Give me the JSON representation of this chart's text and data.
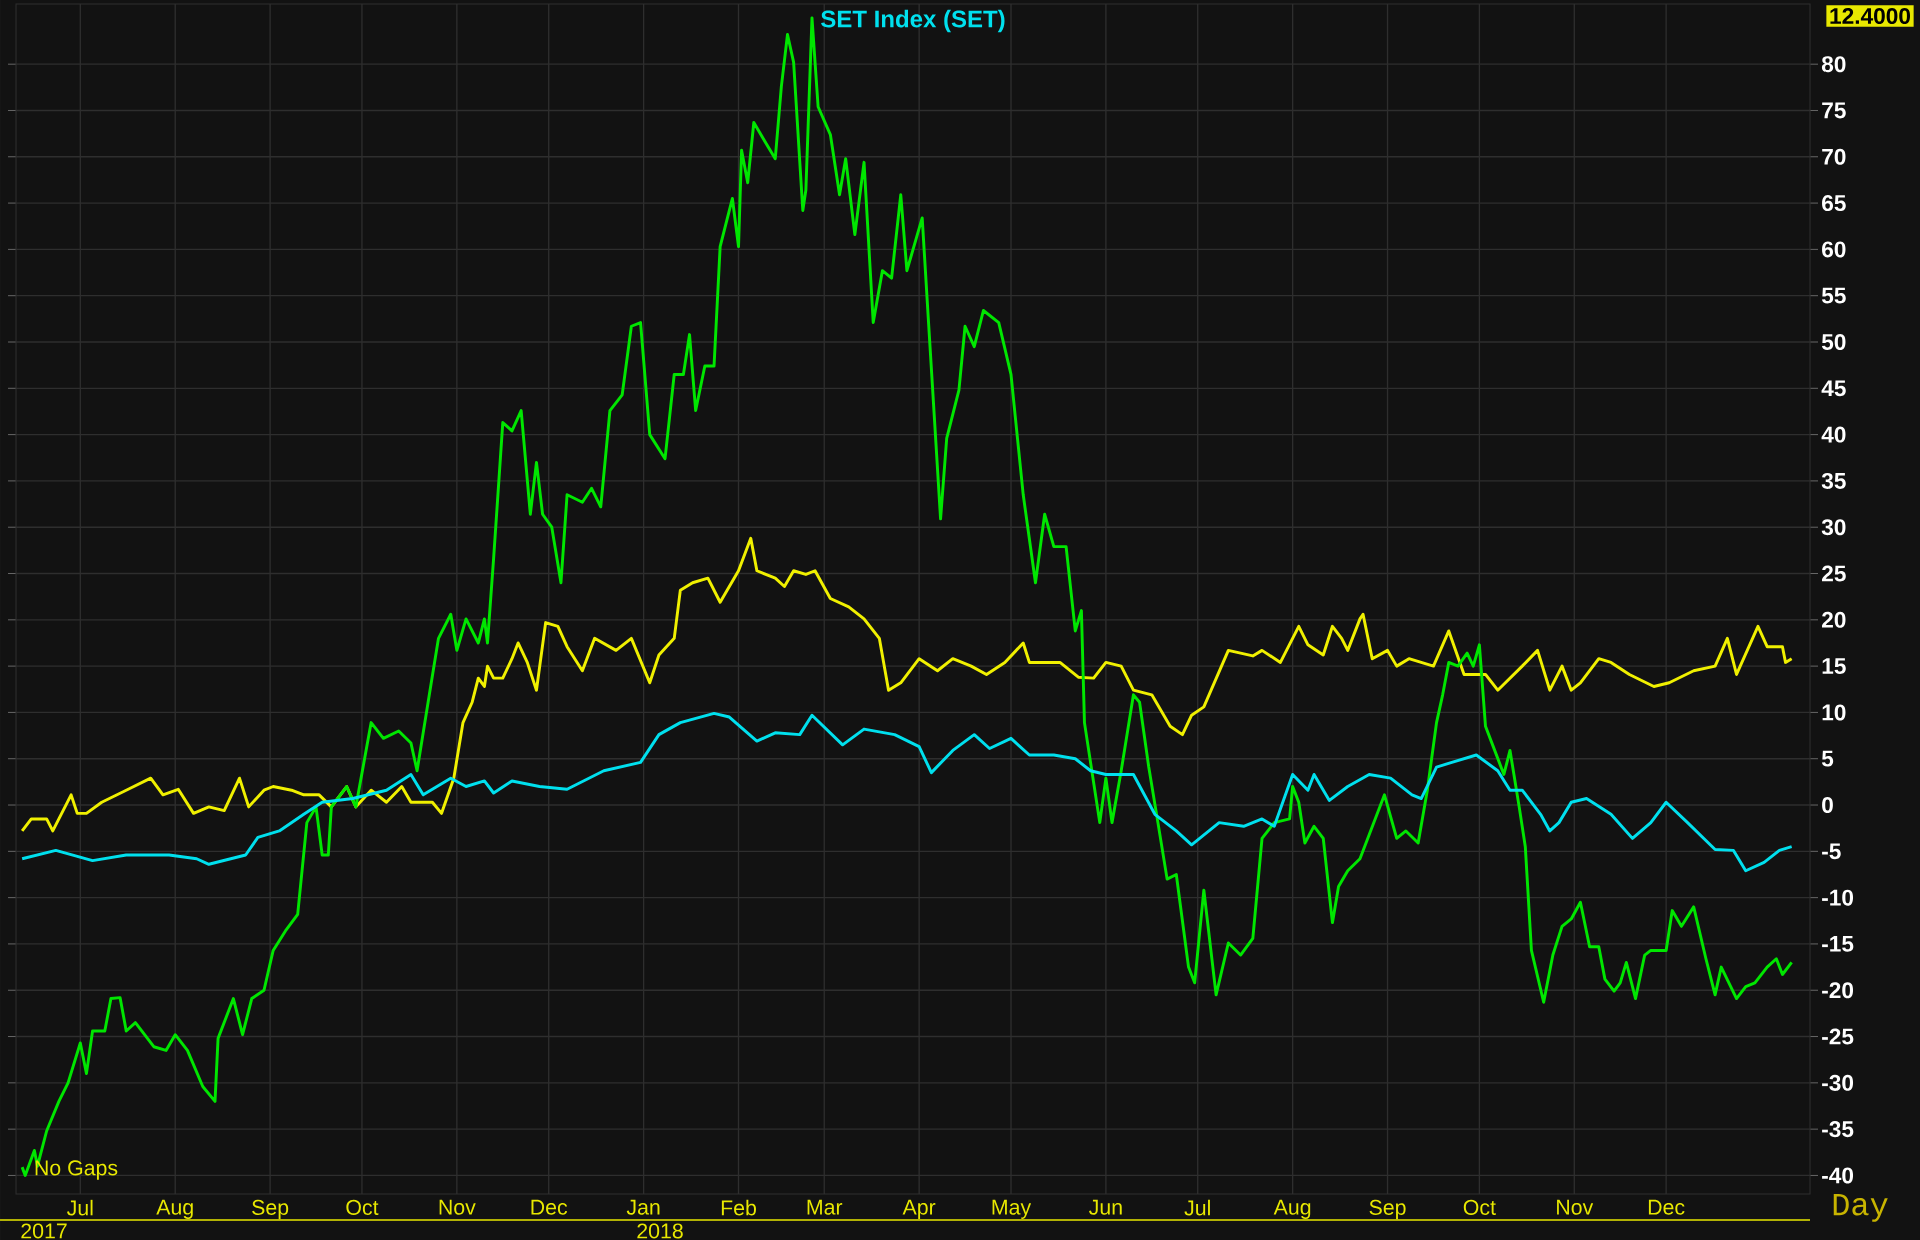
{
  "chart_data": {
    "type": "line",
    "xlim": [
      "2017-06-10",
      "2019-01-17"
    ],
    "xticks": [
      {
        "value": "2017-07-01",
        "label": "Jul"
      },
      {
        "value": "2017-08-01",
        "label": "Aug"
      },
      {
        "value": "2017-09-01",
        "label": "Sep"
      },
      {
        "value": "2017-10-01",
        "label": "Oct"
      },
      {
        "value": "2017-11-01",
        "label": "Nov"
      },
      {
        "value": "2017-12-01",
        "label": "Dec"
      },
      {
        "value": "2018-01-01",
        "label": "Jan"
      },
      {
        "value": "2018-02-01",
        "label": "Feb"
      },
      {
        "value": "2018-03-01",
        "label": "Mar"
      },
      {
        "value": "2018-04-01",
        "label": "Apr"
      },
      {
        "value": "2018-05-01",
        "label": "May"
      },
      {
        "value": "2018-06-01",
        "label": "Jun"
      },
      {
        "value": "2018-07-01",
        "label": "Jul"
      },
      {
        "value": "2018-08-01",
        "label": "Aug"
      },
      {
        "value": "2018-09-01",
        "label": "Sep"
      },
      {
        "value": "2018-10-01",
        "label": "Oct"
      },
      {
        "value": "2018-11-01",
        "label": "Nov"
      },
      {
        "value": "2018-12-01",
        "label": "Dec"
      }
    ],
    "ylim": [
      -42,
      86.5
    ],
    "yticks": [
      -40,
      -35,
      -30,
      -25,
      -20,
      -15,
      -10,
      -5,
      0,
      5,
      10,
      15,
      20,
      25,
      30,
      35,
      40,
      45,
      50,
      55,
      60,
      65,
      70,
      75,
      80
    ],
    "grid": true,
    "legend": "top",
    "annotations": [
      "12.4000",
      "No Gaps",
      "Day",
      "2017",
      "2018"
    ],
    "series": [
      {
        "color": "#f0f000",
        "x": [
          "2017-06-12",
          "2017-06-15",
          "2017-06-20",
          "2017-06-22",
          "2017-06-28",
          "2017-06-30",
          "2017-07-03",
          "2017-07-08",
          "2017-07-16",
          "2017-07-24",
          "2017-07-28",
          "2017-08-02",
          "2017-08-07",
          "2017-08-12",
          "2017-08-17",
          "2017-08-22",
          "2017-08-25",
          "2017-08-30",
          "2017-09-02",
          "2017-09-08",
          "2017-09-12",
          "2017-09-17",
          "2017-09-21",
          "2017-09-26",
          "2017-09-29",
          "2017-10-04",
          "2017-10-09",
          "2017-10-14",
          "2017-10-17",
          "2017-10-24",
          "2017-10-27",
          "2017-10-31",
          "2017-11-03",
          "2017-11-06",
          "2017-11-08",
          "2017-11-10",
          "2017-11-11",
          "2017-11-13",
          "2017-11-16",
          "2017-11-19",
          "2017-11-21",
          "2017-11-24",
          "2017-11-27",
          "2017-11-30",
          "2017-12-04",
          "2017-12-07",
          "2017-12-12",
          "2017-12-16",
          "2017-12-23",
          "2017-12-28",
          "2018-01-03",
          "2018-01-06",
          "2018-01-11",
          "2018-01-13",
          "2018-01-17",
          "2018-01-22",
          "2018-01-26",
          "2018-02-01",
          "2018-02-05",
          "2018-02-07",
          "2018-02-13",
          "2018-02-16",
          "2018-02-19",
          "2018-02-23",
          "2018-02-26",
          "2018-03-03",
          "2018-03-09",
          "2018-03-14",
          "2018-03-19",
          "2018-03-22",
          "2018-03-26",
          "2018-04-01",
          "2018-04-07",
          "2018-04-12",
          "2018-04-18",
          "2018-04-23",
          "2018-04-29",
          "2018-05-05",
          "2018-05-07",
          "2018-05-17",
          "2018-05-23",
          "2018-05-28",
          "2018-06-01",
          "2018-06-06",
          "2018-06-10",
          "2018-06-16",
          "2018-06-22",
          "2018-06-26",
          "2018-06-29",
          "2018-07-03",
          "2018-07-11",
          "2018-07-19",
          "2018-07-22",
          "2018-07-28",
          "2018-08-03",
          "2018-08-06",
          "2018-08-11",
          "2018-08-14",
          "2018-08-17",
          "2018-08-19",
          "2018-08-23",
          "2018-08-24",
          "2018-08-27",
          "2018-09-01",
          "2018-09-04",
          "2018-09-08",
          "2018-09-16",
          "2018-09-21",
          "2018-09-26",
          "2018-10-03",
          "2018-10-07",
          "2018-10-15",
          "2018-10-20",
          "2018-10-24",
          "2018-10-28",
          "2018-10-31",
          "2018-11-03",
          "2018-11-09",
          "2018-11-13",
          "2018-11-19",
          "2018-11-27",
          "2018-12-02",
          "2018-12-10",
          "2018-12-17",
          "2018-12-21",
          "2018-12-24",
          "2018-12-31",
          "2019-01-03",
          "2019-01-08",
          "2019-01-09",
          "2019-01-11"
        ],
        "values": [
          -2.8,
          -1.5,
          -1.5,
          -2.8,
          1.1,
          -0.9,
          -0.9,
          0.3,
          1.6,
          2.9,
          1.1,
          1.7,
          -0.9,
          -0.2,
          -0.6,
          2.9,
          -0.2,
          1.6,
          2,
          1.6,
          1.1,
          1.1,
          -0.2,
          2,
          -0.2,
          1.6,
          0.3,
          2,
          0.3,
          0.3,
          -0.9,
          2.9,
          8.9,
          11.1,
          13.7,
          12.8,
          15,
          13.7,
          13.7,
          15.8,
          17.5,
          15.4,
          12.4,
          19.7,
          19.3,
          17.1,
          14.5,
          18,
          16.7,
          18,
          13.2,
          16.2,
          18,
          23.2,
          24,
          24.5,
          21.9,
          25.3,
          28.8,
          25.3,
          24.5,
          23.6,
          25.3,
          24.9,
          25.3,
          22.3,
          21.4,
          20.1,
          18,
          12.4,
          13.2,
          15.8,
          14.5,
          15.8,
          15,
          14.1,
          15.4,
          17.5,
          15.4,
          15.4,
          13.8,
          13.7,
          15.4,
          15,
          12.4,
          11.9,
          8.5,
          7.6,
          9.7,
          10.6,
          16.7,
          16.1,
          16.7,
          15.4,
          19.3,
          17.3,
          16.2,
          19.3,
          18,
          16.7,
          20.1,
          20.6,
          15.8,
          16.7,
          15,
          15.8,
          15,
          18.8,
          14.1,
          14.1,
          12.4,
          15,
          16.7,
          12.4,
          15,
          12.4,
          13.2,
          15.8,
          15.4,
          14.1,
          12.8,
          13.2,
          14.5,
          15,
          18,
          14.1,
          19.3,
          17.1,
          17.1,
          15.4,
          15.8
        ]
      },
      {
        "color": "#00e600",
        "x": [
          "2017-06-12",
          "2017-06-13",
          "2017-06-16",
          "2017-06-17",
          "2017-06-20",
          "2017-06-24",
          "2017-06-27",
          "2017-07-01",
          "2017-07-03",
          "2017-07-05",
          "2017-07-09",
          "2017-07-11",
          "2017-07-14",
          "2017-07-16",
          "2017-07-19",
          "2017-07-25",
          "2017-07-29",
          "2017-08-01",
          "2017-08-05",
          "2017-08-10",
          "2017-08-14",
          "2017-08-15",
          "2017-08-20",
          "2017-08-23",
          "2017-08-26",
          "2017-08-30",
          "2017-09-02",
          "2017-09-06",
          "2017-09-10",
          "2017-09-13",
          "2017-09-16",
          "2017-09-18",
          "2017-09-20",
          "2017-09-21",
          "2017-09-26",
          "2017-09-29",
          "2017-10-04",
          "2017-10-08",
          "2017-10-13",
          "2017-10-17",
          "2017-10-19",
          "2017-10-23",
          "2017-10-26",
          "2017-10-30",
          "2017-11-01",
          "2017-11-04",
          "2017-11-08",
          "2017-11-10",
          "2017-11-11",
          "2017-11-13",
          "2017-11-16",
          "2017-11-19",
          "2017-11-22",
          "2017-11-25",
          "2017-11-27",
          "2017-11-29",
          "2017-12-02",
          "2017-12-05",
          "2017-12-07",
          "2017-12-12",
          "2017-12-15",
          "2017-12-18",
          "2017-12-21",
          "2017-12-25",
          "2017-12-28",
          "2017-12-31",
          "2018-01-03",
          "2018-01-08",
          "2018-01-11",
          "2018-01-14",
          "2018-01-16",
          "2018-01-18",
          "2018-01-21",
          "2018-01-24",
          "2018-01-26",
          "2018-01-30",
          "2018-02-01",
          "2018-02-02",
          "2018-02-04",
          "2018-02-06",
          "2018-02-09",
          "2018-02-13",
          "2018-02-15",
          "2018-02-17",
          "2018-02-19",
          "2018-02-22",
          "2018-02-23",
          "2018-02-25",
          "2018-02-27",
          "2018-03-03",
          "2018-03-06",
          "2018-03-08",
          "2018-03-11",
          "2018-03-14",
          "2018-03-17",
          "2018-03-20",
          "2018-03-23",
          "2018-03-26",
          "2018-03-28",
          "2018-04-02",
          "2018-04-04",
          "2018-04-08",
          "2018-04-10",
          "2018-04-14",
          "2018-04-16",
          "2018-04-19",
          "2018-04-22",
          "2018-04-27",
          "2018-05-01",
          "2018-05-05",
          "2018-05-09",
          "2018-05-12",
          "2018-05-15",
          "2018-05-19",
          "2018-05-22",
          "2018-05-24",
          "2018-05-25",
          "2018-05-30",
          "2018-06-01",
          "2018-06-03",
          "2018-06-06",
          "2018-06-10",
          "2018-06-12",
          "2018-06-15",
          "2018-06-18",
          "2018-06-21",
          "2018-06-24",
          "2018-06-28",
          "2018-06-30",
          "2018-07-03",
          "2018-07-07",
          "2018-07-11",
          "2018-07-15",
          "2018-07-19",
          "2018-07-22",
          "2018-07-26",
          "2018-07-31",
          "2018-08-01",
          "2018-08-03",
          "2018-08-05",
          "2018-08-08",
          "2018-08-11",
          "2018-08-14",
          "2018-08-16",
          "2018-08-19",
          "2018-08-23",
          "2018-08-26",
          "2018-08-31",
          "2018-09-04",
          "2018-09-07",
          "2018-09-11",
          "2018-09-14",
          "2018-09-17",
          "2018-09-19",
          "2018-09-21",
          "2018-09-24",
          "2018-09-27",
          "2018-09-29",
          "2018-10-01",
          "2018-10-03",
          "2018-10-06",
          "2018-10-09",
          "2018-10-11",
          "2018-10-14",
          "2018-10-16",
          "2018-10-18",
          "2018-10-22",
          "2018-10-25",
          "2018-10-28",
          "2018-10-31",
          "2018-11-03",
          "2018-11-06",
          "2018-11-09",
          "2018-11-11",
          "2018-11-14",
          "2018-11-16",
          "2018-11-18",
          "2018-11-21",
          "2018-11-24",
          "2018-11-26",
          "2018-12-01",
          "2018-12-03",
          "2018-12-06",
          "2018-12-10",
          "2018-12-14",
          "2018-12-17",
          "2018-12-19",
          "2018-12-24",
          "2018-12-27",
          "2018-12-30",
          "2019-01-03",
          "2019-01-06",
          "2019-01-08",
          "2019-01-11"
        ],
        "values": [
          -39.1,
          -40,
          -37.3,
          -39,
          -35.2,
          -32,
          -30,
          -25.7,
          -29,
          -24.4,
          -24.4,
          -20.9,
          -20.8,
          -24.4,
          -23.5,
          -26.1,
          -26.5,
          -24.8,
          -26.5,
          -30.4,
          -32,
          -25.2,
          -20.9,
          -24.8,
          -20.9,
          -20,
          -15.7,
          -13.6,
          -11.8,
          -1.9,
          -0.2,
          -5.4,
          -5.4,
          -0.2,
          2,
          -0.2,
          8.9,
          7.2,
          8,
          6.7,
          3.7,
          11.9,
          18,
          20.6,
          16.7,
          20.1,
          17.5,
          20.1,
          17.5,
          26.6,
          41.3,
          40.4,
          42.6,
          31.4,
          37,
          31.4,
          30,
          24,
          33.5,
          32.7,
          34.2,
          32.2,
          42.6,
          44.3,
          51.7,
          52.1,
          40,
          37.4,
          46.5,
          46.5,
          50.8,
          42.6,
          47.4,
          47.4,
          60.3,
          65.5,
          60.3,
          70.7,
          67.2,
          73.7,
          72,
          69.8,
          77.6,
          83.2,
          80.2,
          64.2,
          66.4,
          85,
          75.4,
          72.4,
          65.9,
          69.8,
          61.6,
          69.4,
          52.1,
          57.7,
          56.9,
          65.9,
          57.7,
          63.4,
          52.5,
          30.9,
          39.6,
          44.8,
          51.7,
          49.5,
          53.4,
          52.1,
          46.5,
          33.5,
          24,
          31.4,
          27.9,
          27.9,
          18.8,
          21,
          8.9,
          -1.9,
          2.9,
          -1.9,
          3.7,
          11.9,
          11.1,
          4.1,
          -1.9,
          -8,
          -7.5,
          -17.5,
          -19.2,
          -9.2,
          -20.5,
          -14.9,
          -16.2,
          -14.4,
          -3.6,
          -1.9,
          -1.5,
          2,
          0.3,
          -4.1,
          -2.3,
          -3.6,
          -12.7,
          -8.8,
          -7.1,
          -5.8,
          -3.2,
          1.1,
          -3.6,
          -2.8,
          -4.1,
          1.6,
          8.9,
          11.9,
          15.4,
          15,
          16.4,
          15,
          17.3,
          8.5,
          5.9,
          3.3,
          5.9,
          -0.2,
          -4.5,
          -15.7,
          -21.3,
          -16.2,
          -13.1,
          -12.3,
          -10.5,
          -15.3,
          -15.3,
          -18.8,
          -20.1,
          -19.2,
          -17,
          -20.9,
          -16.2,
          -15.7,
          -15.7,
          -11.4,
          -13.1,
          -11,
          -16.6,
          -20.5,
          -17.5,
          -20.9,
          -19.6,
          -19.2,
          -17.5,
          -16.6,
          -18.3,
          -17
        ]
      },
      {
        "name": "SET Index (SET)",
        "color": "#00e0ee",
        "x": [
          "2017-06-12",
          "2017-06-23",
          "2017-07-05",
          "2017-07-16",
          "2017-07-30",
          "2017-08-08",
          "2017-08-12",
          "2017-08-24",
          "2017-08-28",
          "2017-09-04",
          "2017-09-12",
          "2017-09-18",
          "2017-09-28",
          "2017-10-09",
          "2017-10-17",
          "2017-10-21",
          "2017-10-30",
          "2017-11-04",
          "2017-11-10",
          "2017-11-13",
          "2017-11-19",
          "2017-11-28",
          "2017-12-07",
          "2017-12-19",
          "2017-12-31",
          "2018-01-06",
          "2018-01-13",
          "2018-01-24",
          "2018-01-29",
          "2018-02-07",
          "2018-02-13",
          "2018-02-21",
          "2018-02-25",
          "2018-03-07",
          "2018-03-14",
          "2018-03-24",
          "2018-04-01",
          "2018-04-05",
          "2018-04-12",
          "2018-04-19",
          "2018-04-24",
          "2018-05-01",
          "2018-05-07",
          "2018-05-15",
          "2018-05-22",
          "2018-05-27",
          "2018-06-01",
          "2018-06-10",
          "2018-06-17",
          "2018-06-24",
          "2018-06-29",
          "2018-07-08",
          "2018-07-16",
          "2018-07-22",
          "2018-07-26",
          "2018-08-01",
          "2018-08-06",
          "2018-08-08",
          "2018-08-13",
          "2018-08-19",
          "2018-08-26",
          "2018-09-02",
          "2018-09-09",
          "2018-09-12",
          "2018-09-17",
          "2018-09-22",
          "2018-09-30",
          "2018-10-07",
          "2018-10-11",
          "2018-10-15",
          "2018-10-21",
          "2018-10-24",
          "2018-10-27",
          "2018-10-31",
          "2018-11-05",
          "2018-11-13",
          "2018-11-20",
          "2018-11-26",
          "2018-12-01",
          "2018-12-08",
          "2018-12-17",
          "2018-12-23",
          "2018-12-27",
          "2019-01-02",
          "2019-01-07",
          "2019-01-11"
        ],
        "values": [
          -5.8,
          -4.9,
          -6,
          -5.4,
          -5.4,
          -5.8,
          -6.4,
          -5.4,
          -3.5,
          -2.8,
          -1,
          0.3,
          0.7,
          1.6,
          3.3,
          1.1,
          2.9,
          2,
          2.6,
          1.3,
          2.6,
          2,
          1.7,
          3.7,
          4.6,
          7.6,
          8.9,
          9.9,
          9.5,
          6.9,
          7.8,
          7.6,
          9.7,
          6.5,
          8.2,
          7.6,
          6.3,
          3.5,
          5.9,
          7.6,
          6.1,
          7.2,
          5.4,
          5.4,
          5,
          3.7,
          3.3,
          3.3,
          -1,
          -2.8,
          -4.3,
          -1.9,
          -2.3,
          -1.5,
          -2.3,
          3.3,
          1.6,
          3.3,
          0.5,
          2,
          3.3,
          2.9,
          1.1,
          0.7,
          4.1,
          4.6,
          5.4,
          3.7,
          1.6,
          1.6,
          -1,
          -2.8,
          -1.9,
          0.3,
          0.7,
          -1,
          -3.6,
          -1.9,
          0.3,
          -1.9,
          -4.8,
          -4.9,
          -7.1,
          -6.2,
          -4.9,
          -4.5
        ]
      }
    ]
  }
}
